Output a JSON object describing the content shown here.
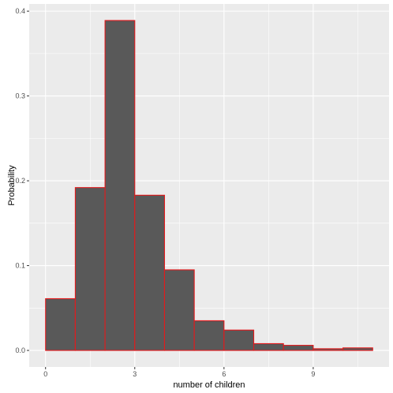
{
  "chart_data": {
    "type": "bar",
    "xlabel": "number of children",
    "ylabel": "Probability",
    "bin_edges": [
      0,
      1,
      2,
      3,
      4,
      5,
      6,
      7,
      8,
      9,
      10,
      11
    ],
    "values": [
      0.061,
      0.192,
      0.389,
      0.183,
      0.095,
      0.035,
      0.024,
      0.008,
      0.006,
      0.002,
      0.003
    ],
    "xlim": [
      -0.55,
      11.55
    ],
    "ylim": [
      -0.0195,
      0.4085
    ],
    "x_ticks": [
      0,
      3,
      6,
      9
    ],
    "x_tick_labels": [
      "0",
      "3",
      "6",
      "9"
    ],
    "y_ticks": [
      0,
      0.1,
      0.2,
      0.3,
      0.4
    ],
    "y_tick_labels": [
      "0.0",
      "0.1",
      "0.2",
      "0.3",
      "0.4"
    ],
    "grid": true,
    "colors": {
      "panel": "#ebebeb",
      "grid_major": "#ffffff",
      "bar_fill": "#595959",
      "bar_outline": "#e31a1c",
      "tick": "#333333"
    }
  }
}
